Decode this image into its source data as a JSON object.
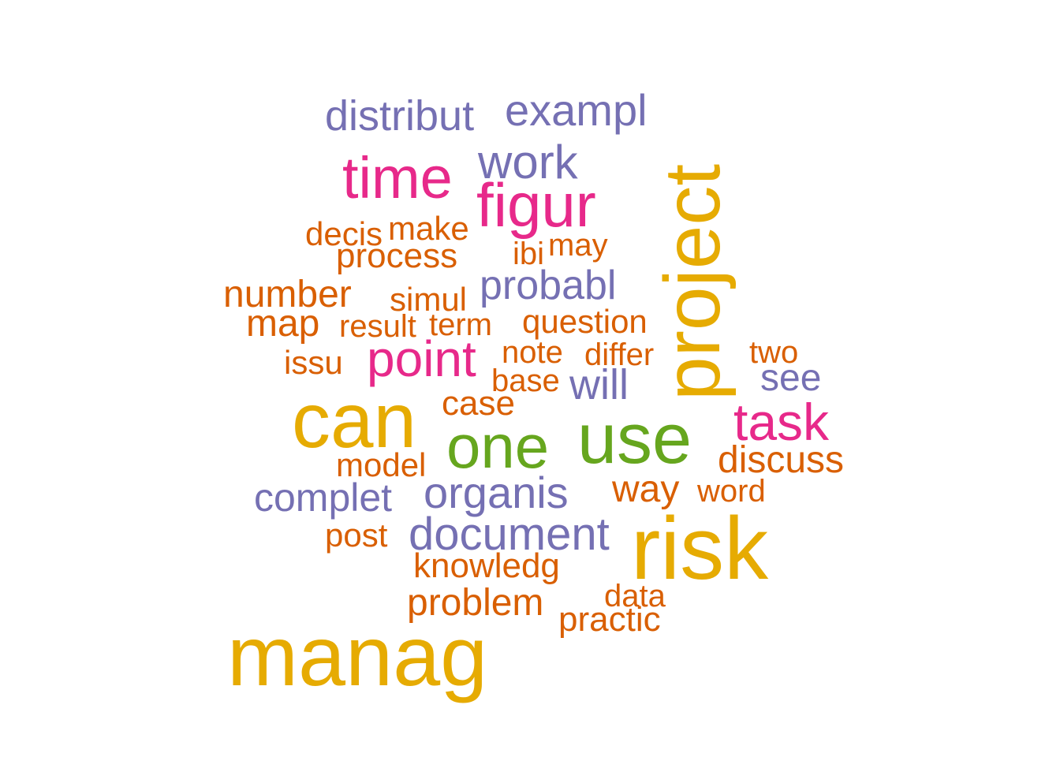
{
  "colors": {
    "gold": "#e6ab02",
    "green": "#66a61e",
    "magenta": "#e7298a",
    "purple": "#7570b3",
    "orange": "#d95f02"
  },
  "chart_data": {
    "type": "wordcloud",
    "words": [
      {
        "text": "manag",
        "weight": 10,
        "color": "gold",
        "rotated": false
      },
      {
        "text": "risk",
        "weight": 9.2,
        "color": "gold",
        "rotated": false
      },
      {
        "text": "can",
        "weight": 8.4,
        "color": "gold",
        "rotated": false
      },
      {
        "text": "project",
        "weight": 8.4,
        "color": "gold",
        "rotated": true
      },
      {
        "text": "use",
        "weight": 7.4,
        "color": "green",
        "rotated": false
      },
      {
        "text": "one",
        "weight": 6.8,
        "color": "green",
        "rotated": false
      },
      {
        "text": "figur",
        "weight": 6,
        "color": "magenta",
        "rotated": false
      },
      {
        "text": "time",
        "weight": 5.6,
        "color": "magenta",
        "rotated": false
      },
      {
        "text": "task",
        "weight": 5.2,
        "color": "magenta",
        "rotated": false
      },
      {
        "text": "point",
        "weight": 5.2,
        "color": "magenta",
        "rotated": false
      },
      {
        "text": "work",
        "weight": 4.6,
        "color": "purple",
        "rotated": false
      },
      {
        "text": "document",
        "weight": 4.4,
        "color": "purple",
        "rotated": false
      },
      {
        "text": "organis",
        "weight": 4.2,
        "color": "purple",
        "rotated": false
      },
      {
        "text": "exampl",
        "weight": 4.2,
        "color": "purple",
        "rotated": false
      },
      {
        "text": "distribut",
        "weight": 4,
        "color": "purple",
        "rotated": false
      },
      {
        "text": "probabl",
        "weight": 3.9,
        "color": "purple",
        "rotated": false
      },
      {
        "text": "complet",
        "weight": 3.8,
        "color": "purple",
        "rotated": false
      },
      {
        "text": "will",
        "weight": 3.8,
        "color": "purple",
        "rotated": false
      },
      {
        "text": "see",
        "weight": 3.6,
        "color": "purple",
        "rotated": false
      },
      {
        "text": "discuss",
        "weight": 3.6,
        "color": "orange",
        "rotated": false
      },
      {
        "text": "problem",
        "weight": 3.6,
        "color": "orange",
        "rotated": false
      },
      {
        "text": "way",
        "weight": 3.6,
        "color": "orange",
        "rotated": false
      },
      {
        "text": "number",
        "weight": 3.5,
        "color": "orange",
        "rotated": false
      },
      {
        "text": "map",
        "weight": 3.5,
        "color": "orange",
        "rotated": false
      },
      {
        "text": "case",
        "weight": 3.4,
        "color": "orange",
        "rotated": false
      },
      {
        "text": "knowledg",
        "weight": 3.3,
        "color": "orange",
        "rotated": false
      },
      {
        "text": "process",
        "weight": 3.3,
        "color": "orange",
        "rotated": false
      },
      {
        "text": "practic",
        "weight": 3.3,
        "color": "orange",
        "rotated": false
      },
      {
        "text": "make",
        "weight": 3.2,
        "color": "orange",
        "rotated": false
      },
      {
        "text": "issu",
        "weight": 3.2,
        "color": "orange",
        "rotated": false
      },
      {
        "text": "simul",
        "weight": 3.2,
        "color": "orange",
        "rotated": false
      },
      {
        "text": "question",
        "weight": 3.1,
        "color": "orange",
        "rotated": false
      },
      {
        "text": "model",
        "weight": 3.1,
        "color": "orange",
        "rotated": false
      },
      {
        "text": "decis",
        "weight": 3.1,
        "color": "orange",
        "rotated": false
      },
      {
        "text": "post",
        "weight": 3.1,
        "color": "orange",
        "rotated": false
      },
      {
        "text": "note",
        "weight": 3.1,
        "color": "orange",
        "rotated": false
      },
      {
        "text": "two",
        "weight": 3.1,
        "color": "orange",
        "rotated": false
      },
      {
        "text": "may",
        "weight": 3,
        "color": "orange",
        "rotated": false
      },
      {
        "text": "base",
        "weight": 3,
        "color": "orange",
        "rotated": false
      },
      {
        "text": "word",
        "weight": 3,
        "color": "orange",
        "rotated": false
      },
      {
        "text": "differ",
        "weight": 3,
        "color": "orange",
        "rotated": false
      },
      {
        "text": "data",
        "weight": 3,
        "color": "orange",
        "rotated": false
      },
      {
        "text": "term",
        "weight": 3,
        "color": "orange",
        "rotated": false
      },
      {
        "text": "ibi",
        "weight": 3,
        "color": "orange",
        "rotated": false
      },
      {
        "text": "result",
        "weight": 2.9,
        "color": "orange",
        "rotated": false
      }
    ]
  }
}
